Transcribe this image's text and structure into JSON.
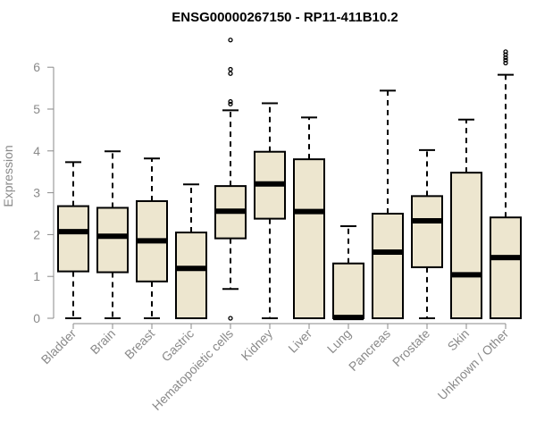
{
  "chart_data": {
    "type": "boxplot",
    "title": "ENSG00000267150 - RP11-411B10.2",
    "ylabel": "Expression",
    "xlabel": "",
    "ylim": [
      0,
      6.8
    ],
    "yticks": [
      0,
      1,
      2,
      3,
      4,
      5,
      6
    ],
    "grid": false,
    "legend": "none",
    "box_fill": "#ede6cf",
    "categories": [
      "Bladder",
      "Brain",
      "Breast",
      "Gastric",
      "Hematopoietic cells",
      "Kidney",
      "Liver",
      "Lung",
      "Pancreas",
      "Prostate",
      "Skin",
      "Unknown / Other"
    ],
    "boxes": [
      {
        "label": "Bladder",
        "whisker_low": 0,
        "q1": 1.12,
        "median": 2.07,
        "q3": 2.68,
        "whisker_high": 3.73,
        "outliers": []
      },
      {
        "label": "Brain",
        "whisker_low": 0,
        "q1": 1.1,
        "median": 1.96,
        "q3": 2.64,
        "whisker_high": 3.99,
        "outliers": []
      },
      {
        "label": "Breast",
        "whisker_low": 0,
        "q1": 0.88,
        "median": 1.85,
        "q3": 2.8,
        "whisker_high": 3.82,
        "outliers": []
      },
      {
        "label": "Gastric",
        "whisker_low": 0,
        "q1": 0,
        "median": 1.19,
        "q3": 2.05,
        "whisker_high": 3.2,
        "outliers": []
      },
      {
        "label": "Hematopoietic cells",
        "whisker_low": 0.7,
        "q1": 1.91,
        "median": 2.56,
        "q3": 3.16,
        "whisker_high": 4.97,
        "outliers": [
          0.0,
          5.12,
          5.18,
          5.85,
          5.95,
          6.65
        ]
      },
      {
        "label": "Kidney",
        "whisker_low": 0,
        "q1": 2.38,
        "median": 3.21,
        "q3": 3.98,
        "whisker_high": 5.14,
        "outliers": []
      },
      {
        "label": "Liver",
        "whisker_low": 0,
        "q1": 0,
        "median": 2.55,
        "q3": 3.8,
        "whisker_high": 4.8,
        "outliers": []
      },
      {
        "label": "Lung",
        "whisker_low": 0,
        "q1": 0,
        "median": 0.02,
        "q3": 1.31,
        "whisker_high": 2.2,
        "outliers": []
      },
      {
        "label": "Pancreas",
        "whisker_low": 0,
        "q1": 0,
        "median": 1.58,
        "q3": 2.5,
        "whisker_high": 5.44,
        "outliers": []
      },
      {
        "label": "Prostate",
        "whisker_low": 0,
        "q1": 1.22,
        "median": 2.33,
        "q3": 2.92,
        "whisker_high": 4.02,
        "outliers": []
      },
      {
        "label": "Skin",
        "whisker_low": 0,
        "q1": 0,
        "median": 1.04,
        "q3": 3.48,
        "whisker_high": 4.75,
        "outliers": []
      },
      {
        "label": "Unknown / Other",
        "whisker_low": 0,
        "q1": 0,
        "median": 1.45,
        "q3": 2.41,
        "whisker_high": 5.82,
        "outliers": [
          6.1,
          6.17,
          6.23,
          6.3,
          6.37
        ]
      }
    ]
  }
}
